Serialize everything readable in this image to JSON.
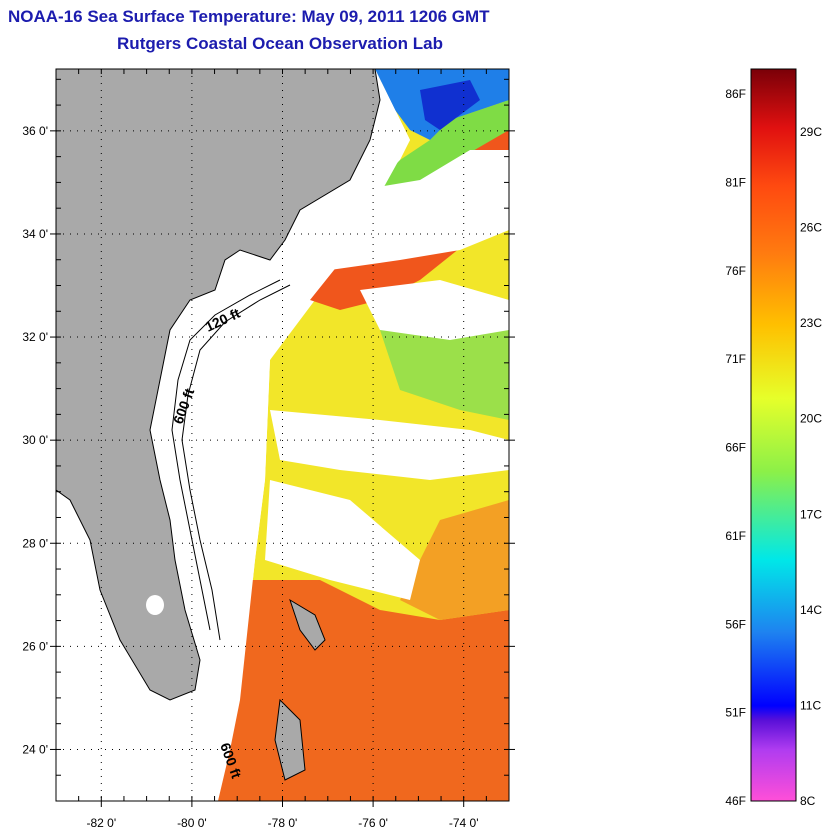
{
  "header": {
    "title": "NOAA-16 Sea Surface Temperature:  May 09, 2011 1206 GMT",
    "subtitle": "Rutgers Coastal Ocean Observation Lab"
  },
  "map": {
    "lon_range": [
      -83,
      -73
    ],
    "lat_range": [
      23,
      37.2
    ],
    "lon_ticks": [
      {
        "value": -82,
        "label": "-82 0'"
      },
      {
        "value": -80,
        "label": "-80 0'"
      },
      {
        "value": -78,
        "label": "-78 0'"
      },
      {
        "value": -76,
        "label": "-76 0'"
      },
      {
        "value": -74,
        "label": "-74 0'"
      }
    ],
    "lat_ticks": [
      {
        "value": 24,
        "label": "24 0'"
      },
      {
        "value": 26,
        "label": "26 0'"
      },
      {
        "value": 28,
        "label": "28 0'"
      },
      {
        "value": 30,
        "label": "30 0'"
      },
      {
        "value": 32,
        "label": "32 0'"
      },
      {
        "value": 34,
        "label": "34 0'"
      },
      {
        "value": 36,
        "label": "36 0'"
      }
    ],
    "contour_labels": [
      "120 ft",
      "600 ft",
      "600 ft"
    ],
    "colors": {
      "land": "#a9a9a9",
      "cloud": "#ffffff",
      "warm_gulfstream": "#f0561c",
      "sst_yellow": "#f2e629",
      "sst_green": "#7fdc45",
      "cold_coastal": "#1f7fe8"
    }
  },
  "colorbar": {
    "fahrenheit_labels": [
      "86F",
      "81F",
      "76F",
      "71F",
      "66F",
      "61F",
      "56F",
      "51F",
      "46F"
    ],
    "celsius_labels": [
      "29C",
      "26C",
      "23C",
      "20C",
      "17C",
      "14C",
      "11C",
      "8C"
    ]
  }
}
